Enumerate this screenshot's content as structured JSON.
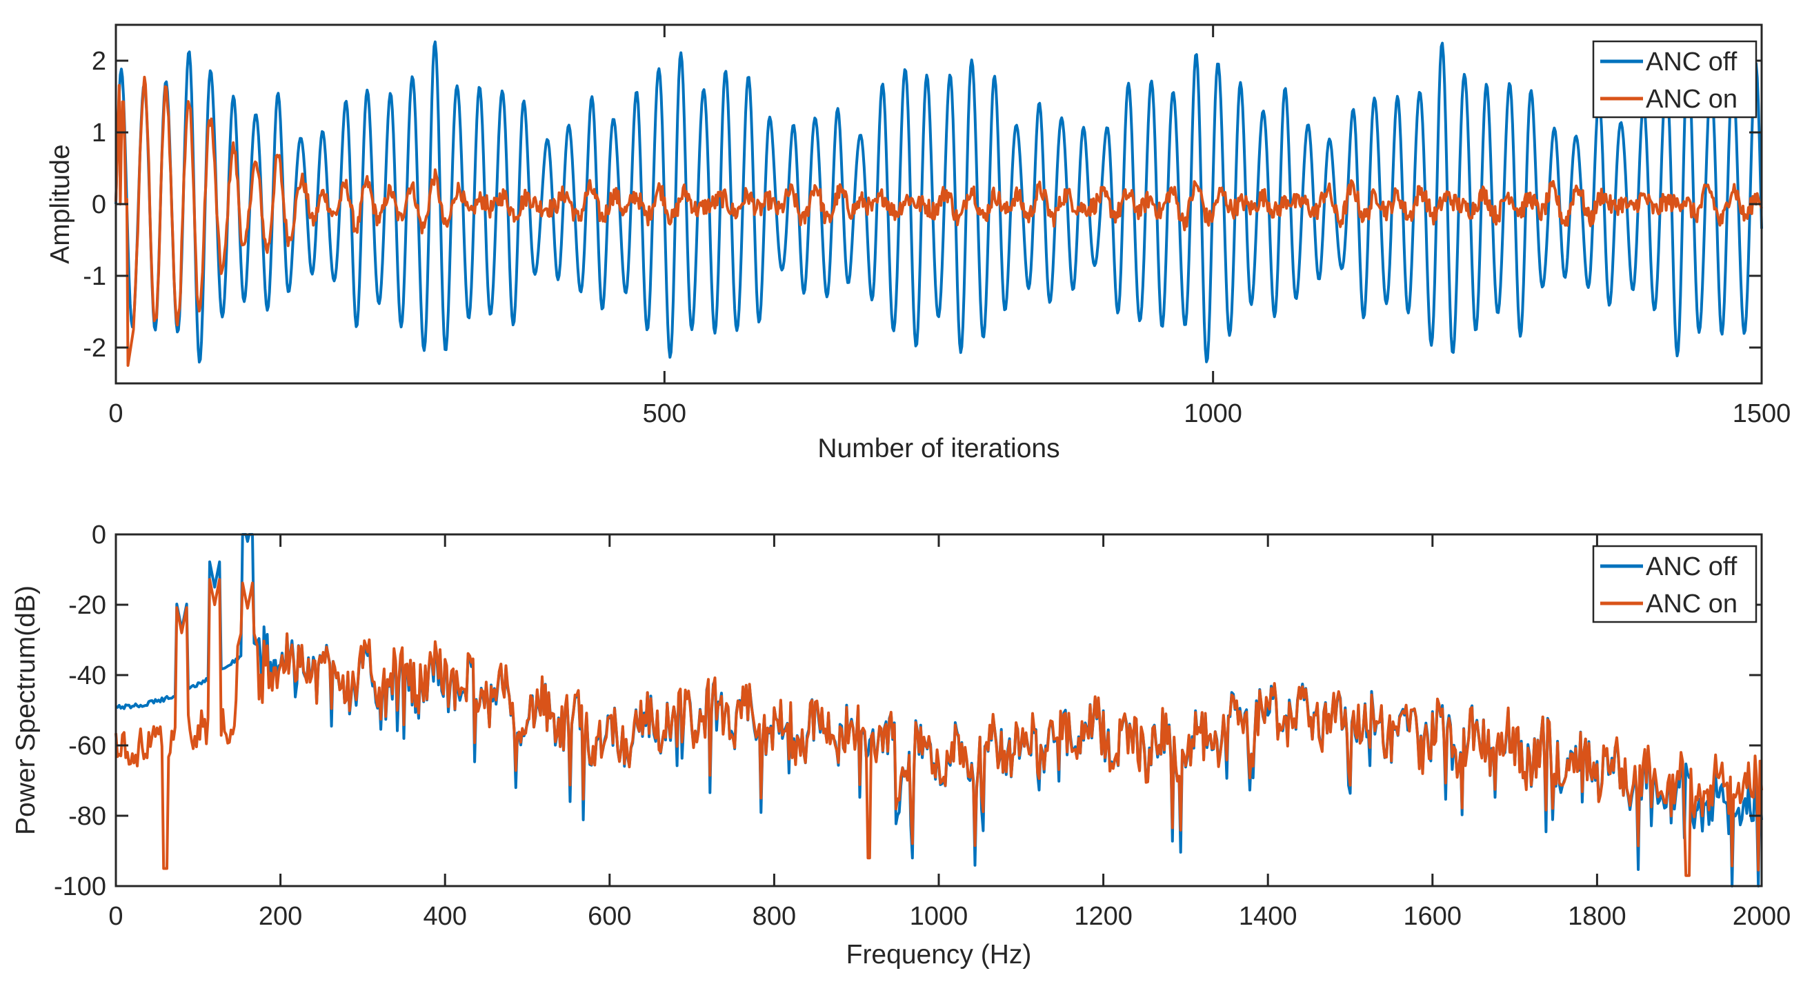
{
  "chart_data": [
    {
      "type": "line",
      "title": "",
      "xlabel": "Number of iterations",
      "ylabel": "Amplitude",
      "xlim": [
        0,
        1500
      ],
      "ylim": [
        -2.5,
        2.5
      ],
      "xticks": [
        0,
        500,
        1000,
        1500
      ],
      "xtick_labels": [
        "0",
        "500",
        "1000",
        "1500"
      ],
      "yticks": [
        -2,
        -1,
        0,
        1,
        2
      ],
      "ytick_labels": [
        "-2",
        "-1",
        "0",
        "1",
        "2"
      ],
      "legend_position": "top-right",
      "grid": false,
      "series": [
        {
          "name": "ANC off",
          "color": "#0072BD",
          "description": "Oscillating noise signal, period ~20 iterations, amplitude ~1.2-2.4 across all 1500 iterations"
        },
        {
          "name": "ANC on",
          "color": "#D95319",
          "description": "Initially follows the noise (amplitude ~1.5-2.3) then converges to near zero (~±0.3) after ~300 iterations"
        }
      ]
    },
    {
      "type": "line",
      "title": "",
      "xlabel": "Frequency (Hz)",
      "ylabel": "Power Spectrum(dB)",
      "xlim": [
        0,
        2000
      ],
      "ylim": [
        -100,
        0
      ],
      "xticks": [
        0,
        200,
        400,
        600,
        800,
        1000,
        1200,
        1400,
        1600,
        1800,
        2000
      ],
      "xtick_labels": [
        "0",
        "200",
        "400",
        "600",
        "800",
        "1000",
        "1200",
        "1400",
        "1600",
        "1800",
        "2000"
      ],
      "yticks": [
        -100,
        -80,
        -60,
        -40,
        -20,
        0
      ],
      "ytick_labels": [
        "-100",
        "-80",
        "-60",
        "-40",
        "-20",
        "0"
      ],
      "legend_position": "top-right",
      "grid": false,
      "series": [
        {
          "name": "ANC off",
          "color": "#0072BD",
          "peaks": [
            {
              "x": 80,
              "y": -27
            },
            {
              "x": 120,
              "y": -15
            },
            {
              "x": 160,
              "y": -2
            }
          ],
          "envelope": {
            "x": [
              0,
              100,
              200,
              300,
              400,
              500,
              600,
              700,
              800,
              900,
              1000,
              1100,
              1200,
              1300,
              1400,
              1500,
              1600,
              1700,
              1800,
              1900,
              2000
            ],
            "y": [
              -49,
              -45,
              -33,
              -42,
              -41,
              -50,
              -58,
              -50,
              -55,
              -57,
              -64,
              -59,
              -57,
              -62,
              -50,
              -52,
              -57,
              -61,
              -65,
              -74,
              -80
            ]
          }
        },
        {
          "name": "ANC on",
          "color": "#D95319",
          "peaks": [
            {
              "x": 60,
              "y": -95
            },
            {
              "x": 80,
              "y": -28
            },
            {
              "x": 120,
              "y": -20
            },
            {
              "x": 160,
              "y": -21
            },
            {
              "x": 915,
              "y": -92
            },
            {
              "x": 1910,
              "y": -97
            }
          ],
          "envelope": {
            "x": [
              0,
              100,
              200,
              300,
              400,
              500,
              600,
              700,
              800,
              900,
              1000,
              1100,
              1200,
              1300,
              1400,
              1500,
              1600,
              1700,
              1800,
              1900,
              2000
            ],
            "y": [
              -62,
              -64,
              -34,
              -41,
              -40,
              -50,
              -58,
              -50,
              -55,
              -57,
              -64,
              -59,
              -57,
              -62,
              -50,
              -52,
              -57,
              -61,
              -65,
              -72,
              -72
            ]
          }
        }
      ]
    }
  ]
}
